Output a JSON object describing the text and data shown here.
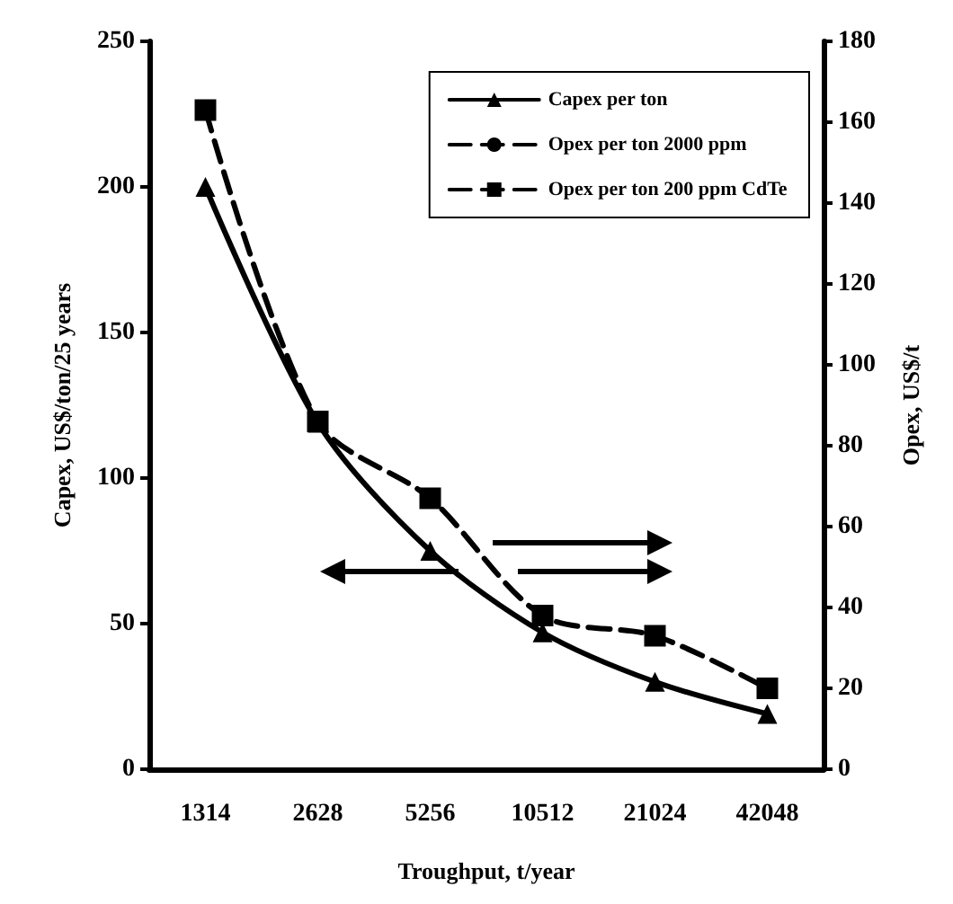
{
  "chart_data": {
    "type": "line",
    "xlabel": "Troughput, t/year",
    "ylabel": "Capex, US$/ton/25 years",
    "y2label": "Opex, US$/t",
    "categories": [
      "1314",
      "2628",
      "5256",
      "10512",
      "21024",
      "42048"
    ],
    "series": [
      {
        "name": "Capex per ton",
        "color": "#000000",
        "values": [
          200,
          119,
          75,
          47,
          30,
          19
        ],
        "marker": "triangle",
        "line_style": "solid"
      },
      {
        "name": "Opex per ton 2000 ppm",
        "color": "#000000",
        "values": [
          null,
          null,
          null,
          null,
          null,
          null
        ],
        "marker": "circle",
        "line_style": "dashed",
        "axis": "y2"
      },
      {
        "name": "Opex per ton 200 ppm CdTe",
        "color": "#000000",
        "values": [
          163,
          86,
          67,
          38,
          33,
          20
        ],
        "marker": "square",
        "line_style": "dashed",
        "axis": "y2"
      }
    ],
    "ylim": [
      0,
      250
    ],
    "yticks": [
      0,
      50,
      100,
      150,
      200,
      250
    ],
    "y2lim": [
      0,
      180
    ],
    "y2ticks": [
      0,
      20,
      40,
      60,
      80,
      100,
      120,
      140,
      160,
      180
    ],
    "legend": "top right",
    "grid": false
  }
}
